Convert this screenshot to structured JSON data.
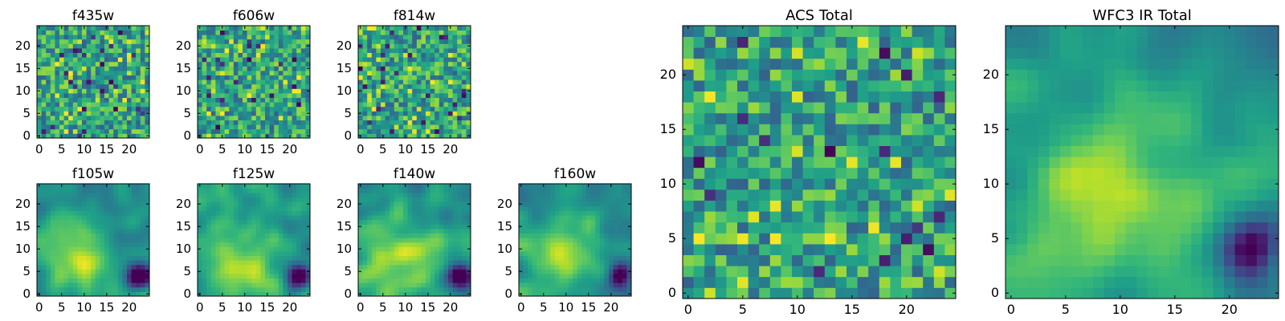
{
  "chart_data": [
    {
      "type": "heatmap",
      "title": "f435w",
      "colormap": "viridis",
      "xlim": [
        0,
        24
      ],
      "ylim": [
        0,
        24
      ],
      "xticks": [
        "0",
        "5",
        "10",
        "15",
        "20"
      ],
      "yticks": [
        "0",
        "5",
        "10",
        "15",
        "20"
      ],
      "grid": false,
      "pattern": "noise"
    },
    {
      "type": "heatmap",
      "title": "f606w",
      "colormap": "viridis",
      "xlim": [
        0,
        24
      ],
      "ylim": [
        0,
        24
      ],
      "xticks": [
        "0",
        "5",
        "10",
        "15",
        "20"
      ],
      "yticks": [
        "0",
        "5",
        "10",
        "15",
        "20"
      ],
      "grid": false,
      "pattern": "noise"
    },
    {
      "type": "heatmap",
      "title": "f814w",
      "colormap": "viridis",
      "xlim": [
        0,
        24
      ],
      "ylim": [
        0,
        24
      ],
      "xticks": [
        "0",
        "5",
        "10",
        "15",
        "20"
      ],
      "yticks": [
        "0",
        "5",
        "10",
        "15",
        "20"
      ],
      "grid": false,
      "pattern": "noise"
    },
    {
      "type": "heatmap",
      "title": "f105w",
      "colormap": "viridis",
      "xlim": [
        0,
        24
      ],
      "ylim": [
        0,
        24
      ],
      "xticks": [
        "0",
        "5",
        "10",
        "15",
        "20"
      ],
      "yticks": [
        "0",
        "5",
        "10",
        "15",
        "20"
      ],
      "grid": false,
      "pattern": "smooth"
    },
    {
      "type": "heatmap",
      "title": "f125w",
      "colormap": "viridis",
      "xlim": [
        0,
        24
      ],
      "ylim": [
        0,
        24
      ],
      "xticks": [
        "0",
        "5",
        "10",
        "15",
        "20"
      ],
      "yticks": [
        "0",
        "5",
        "10",
        "15",
        "20"
      ],
      "grid": false,
      "pattern": "smooth"
    },
    {
      "type": "heatmap",
      "title": "f140w",
      "colormap": "viridis",
      "xlim": [
        0,
        24
      ],
      "ylim": [
        0,
        24
      ],
      "xticks": [
        "0",
        "5",
        "10",
        "15",
        "20"
      ],
      "yticks": [
        "0",
        "5",
        "10",
        "15",
        "20"
      ],
      "grid": false,
      "pattern": "smooth"
    },
    {
      "type": "heatmap",
      "title": "f160w",
      "colormap": "viridis",
      "xlim": [
        0,
        24
      ],
      "ylim": [
        0,
        24
      ],
      "xticks": [
        "0",
        "5",
        "10",
        "15",
        "20"
      ],
      "yticks": [
        "0",
        "5",
        "10",
        "15",
        "20"
      ],
      "grid": false,
      "pattern": "smooth"
    },
    {
      "type": "heatmap",
      "title": "ACS Total",
      "colormap": "viridis",
      "xlim": [
        0,
        24
      ],
      "ylim": [
        0,
        24
      ],
      "xticks": [
        "0",
        "5",
        "10",
        "15",
        "20"
      ],
      "yticks": [
        "0",
        "5",
        "10",
        "15",
        "20"
      ],
      "grid": false,
      "pattern": "noise"
    },
    {
      "type": "heatmap",
      "title": "WFC3 IR Total",
      "colormap": "viridis",
      "xlim": [
        0,
        24
      ],
      "ylim": [
        0,
        24
      ],
      "xticks": [
        "0",
        "5",
        "10",
        "15",
        "20"
      ],
      "yticks": [
        "0",
        "5",
        "10",
        "15",
        "20"
      ],
      "grid": false,
      "pattern": "smooth"
    }
  ]
}
